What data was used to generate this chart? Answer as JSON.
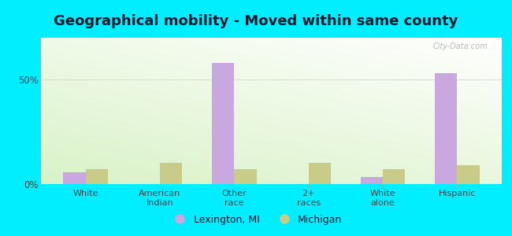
{
  "title": "Geographical mobility - Moved within same county",
  "categories": [
    "White",
    "American\nIndian",
    "Other\nrace",
    "2+\nraces",
    "White\nalone",
    "Hispanic"
  ],
  "lexington_values": [
    5.5,
    0.0,
    58.0,
    0.0,
    3.5,
    53.0
  ],
  "michigan_values": [
    7.0,
    10.0,
    7.0,
    10.0,
    7.0,
    9.0
  ],
  "lexington_color": "#c9a8e0",
  "michigan_color": "#c8cc88",
  "ylim": [
    0,
    70
  ],
  "outer_bg": "#00eeff",
  "bar_width": 0.3,
  "title_fontsize": 13,
  "legend_lexington": "Lexington, MI",
  "legend_michigan": "Michigan",
  "watermark": "City-Data.com"
}
